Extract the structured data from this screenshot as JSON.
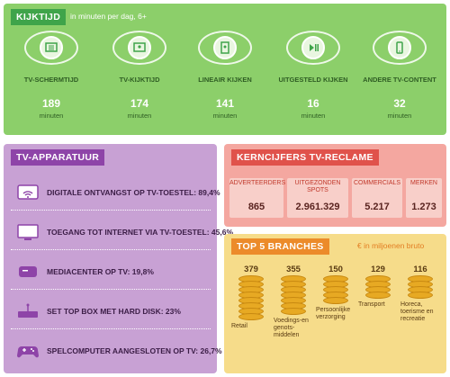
{
  "kijktijd": {
    "title": "KIJKTIJD",
    "subtitle": "in minuten per dag, 6+",
    "items": [
      {
        "label": "TV-SCHERMTIJD",
        "value": "189",
        "unit": "minuten",
        "icon": "tv-grid-icon"
      },
      {
        "label": "TV-KIJKTIJD",
        "value": "174",
        "unit": "minuten",
        "icon": "tv-person-icon"
      },
      {
        "label": "LINEAIR KIJKEN",
        "value": "141",
        "unit": "minuten",
        "icon": "tablet-person-icon"
      },
      {
        "label": "UITGESTELD KIJKEN",
        "value": "16",
        "unit": "minuten",
        "icon": "play-pause-icon"
      },
      {
        "label": "ANDERE TV-CONTENT",
        "value": "32",
        "unit": "minuten",
        "icon": "phone-icon"
      }
    ]
  },
  "tv_apparatuur": {
    "title": "TV-APPARATUUR",
    "items": [
      {
        "label": "DIGITALE ONTVANGST OP TV-TOESTEL: 89,4%",
        "icon": "wifi-tv-icon"
      },
      {
        "label": "TOEGANG TOT INTERNET VIA TV-TOESTEL: 45,6%",
        "icon": "tv-screen-icon"
      },
      {
        "label": "MEDIACENTER OP TV: 19,8%",
        "icon": "mediacenter-icon"
      },
      {
        "label": "SET TOP BOX MET HARD DISK: 23%",
        "icon": "settopbox-icon"
      },
      {
        "label": "SPELCOMPUTER AANGESLOTEN OP TV: 26,7%",
        "icon": "gamepad-icon"
      }
    ]
  },
  "kerncijfers": {
    "title": "KERNCIJFERS TV-RECLAME",
    "items": [
      {
        "label": "ADVERTEERDERS",
        "value": "865"
      },
      {
        "label": "UITGEZONDEN SPOTS",
        "value": "2.961.329"
      },
      {
        "label": "COMMERCIALS",
        "value": "5.217"
      },
      {
        "label": "MERKEN",
        "value": "1.273"
      }
    ]
  },
  "top5": {
    "title": "TOP 5 BRANCHES",
    "unit": "€ in miljoenen bruto",
    "items": [
      {
        "label": "Retail",
        "value": "379"
      },
      {
        "label": "Voedings-en genots-middelen",
        "value": "355"
      },
      {
        "label": "Persoonlijke verzorging",
        "value": "150"
      },
      {
        "label": "Transport",
        "value": "129"
      },
      {
        "label": "Horeca, toerisme en recreatie",
        "value": "116"
      }
    ]
  },
  "colors": {
    "green": "#8ccf6a",
    "purple": "#c8a1d4",
    "salmon": "#f4a7a0",
    "yellow": "#f6dc8a",
    "coin": "#e7a923"
  }
}
